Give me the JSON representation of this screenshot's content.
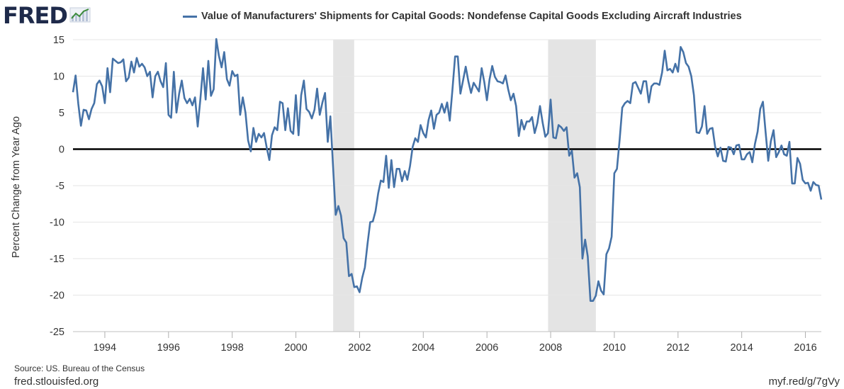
{
  "brand": {
    "logo_text": "FRED",
    "logo_icon": "trend-line-icon"
  },
  "colors": {
    "series": "#4572a7",
    "recession": "#e4e4e4",
    "grid": "#e6e6e6",
    "zero_line": "#000000"
  },
  "source_text": "Source: US. Bureau of the Census",
  "site_text": "fred.stlouisfed.org",
  "shortlink_text": "myf.red/g/7gVy",
  "chart_data": {
    "type": "line",
    "title": "",
    "ylabel": "Percent Change from Year Ago",
    "xlabel": "",
    "xlim": [
      1993.0,
      2016.5
    ],
    "ylim": [
      -25,
      15
    ],
    "yticks": [
      -25,
      -20,
      -15,
      -10,
      -5,
      0,
      5,
      10,
      15
    ],
    "xticks": [
      1994,
      1996,
      1998,
      2000,
      2002,
      2004,
      2006,
      2008,
      2010,
      2012,
      2014,
      2016
    ],
    "grid": true,
    "zero_line": true,
    "recessions": [
      [
        2001.17,
        2001.83
      ],
      [
        2007.92,
        2009.42
      ]
    ],
    "legend_position": "top",
    "series": [
      {
        "name": "Value of Manufacturers' Shipments for Capital Goods: Nondefense Capital Goods Excluding Aircraft Industries",
        "x_start": 1993.0,
        "step": 0.08333,
        "values": [
          7.8,
          10.1,
          6.2,
          3.2,
          5.4,
          5.3,
          4.1,
          5.5,
          6.3,
          8.9,
          9.4,
          8.6,
          6.3,
          11.1,
          7.8,
          12.4,
          12.1,
          11.8,
          11.9,
          12.3,
          9.3,
          9.8,
          12,
          10.5,
          12.5,
          11.3,
          11.7,
          11.2,
          10,
          10.6,
          7.1,
          10,
          10.6,
          9.3,
          8.5,
          11.8,
          4.7,
          4.3,
          10.6,
          5,
          7.6,
          9.4,
          7,
          6.3,
          6.9,
          6,
          7.1,
          3.1,
          6.8,
          11.1,
          6.8,
          12.1,
          7.3,
          8.2,
          15.1,
          12.8,
          11.2,
          13.3,
          9.6,
          8.7,
          10.7,
          10,
          10.2,
          4.7,
          7.1,
          5,
          1.2,
          -0.3,
          2.9,
          1,
          2.1,
          1.6,
          2.2,
          0.2,
          -1.5,
          1.9,
          3,
          2.6,
          6.5,
          6.3,
          2.6,
          5.6,
          2.5,
          2.1,
          7.4,
          1.9,
          7.4,
          9.4,
          5.5,
          5.1,
          4.2,
          5.4,
          8.3,
          4.7,
          6.4,
          7.7,
          1,
          4.5,
          -2.4,
          -9,
          -7.8,
          -9.1,
          -12.2,
          -12.8,
          -17.4,
          -17.1,
          -18.9,
          -18.8,
          -19.6,
          -17.6,
          -16.2,
          -13,
          -10,
          -9.9,
          -8.5,
          -6.1,
          -4.3,
          -4.5,
          -0.9,
          -5.3,
          -1.5,
          -5.2,
          -2.7,
          -2.7,
          -4.4,
          -3,
          -4.2,
          -2.3,
          0.3,
          1.5,
          1,
          3.3,
          2.2,
          1.6,
          4,
          5.3,
          2.8,
          4.7,
          5,
          6.2,
          5,
          6.4,
          3.9,
          8.2,
          12.7,
          12.7,
          7.6,
          9.4,
          11.3,
          9.3,
          7.7,
          9.1,
          8.5,
          7.9,
          11.1,
          9.2,
          6.7,
          9.6,
          11.4,
          9.9,
          9.3,
          9.2,
          9,
          10.1,
          8.2,
          6.7,
          7.6,
          5.9,
          1.8,
          4,
          2.7,
          3.8,
          3.8,
          4.4,
          2.2,
          3.6,
          5.9,
          3.6,
          1.7,
          2.2,
          6.8,
          1.6,
          1.5,
          3.3,
          3,
          2.5,
          3,
          -0.9,
          -0.2,
          -3.9,
          -3.3,
          -5.2,
          -15,
          -12.4,
          -14.7,
          -20.8,
          -20.8,
          -20.1,
          -18.1,
          -19.4,
          -19.9,
          -14.4,
          -13.6,
          -12,
          -3.3,
          -2.7,
          1.3,
          5.7,
          6.3,
          6.6,
          6.3,
          9,
          9.2,
          8.4,
          7.6,
          9.3,
          9.3,
          6.4,
          8.6,
          9,
          9,
          8.8,
          10.5,
          13.5,
          10.8,
          11,
          10.5,
          11.7,
          10.6,
          14,
          13.3,
          11.8,
          11.3,
          10,
          7.4,
          2.3,
          2.2,
          3.1,
          5.9,
          2.1,
          2.8,
          2.9,
          0.3,
          -1,
          0.2,
          -1.6,
          -1.7,
          0.3,
          0.2,
          -0.7,
          0.5,
          0.6,
          -1.4,
          -1.4,
          -0.7,
          -0.4,
          -1.8,
          0.7,
          2.4,
          5.5,
          6.5,
          2.4,
          -1.6,
          1.1,
          2.6,
          -1.1,
          -0.4,
          0.5,
          -0.7,
          -0.9,
          1,
          -4.7,
          -4.7,
          -1.2,
          -2,
          -4.2,
          -4.7,
          -4.6,
          -5.7,
          -4.5,
          -4.9,
          -5,
          -6.9
        ]
      }
    ]
  }
}
